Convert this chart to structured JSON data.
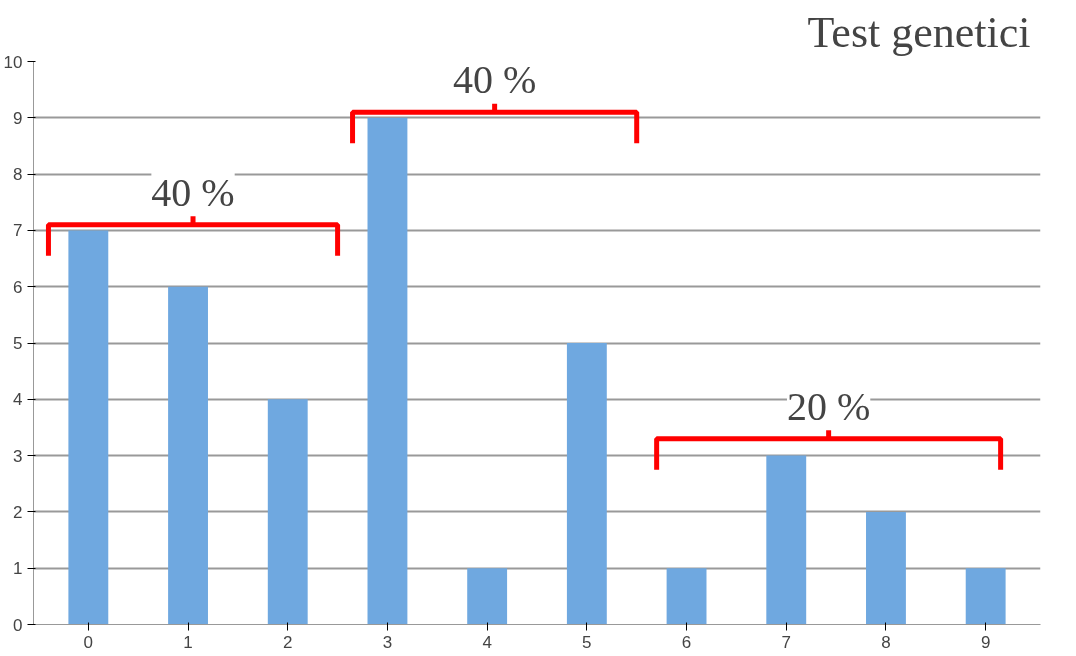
{
  "chart_data": {
    "type": "bar",
    "title": "Test genetici",
    "categories": [
      "0",
      "1",
      "2",
      "3",
      "4",
      "5",
      "6",
      "7",
      "8",
      "9"
    ],
    "values": [
      7,
      6,
      4,
      9,
      1,
      5,
      1,
      3,
      2,
      1
    ],
    "color": "#6fa8e0",
    "ylim": [
      0,
      10
    ],
    "yticks": [
      0,
      1,
      2,
      3,
      4,
      5,
      6,
      7,
      8,
      9,
      10
    ],
    "grid": "y",
    "annotations": [
      "40 %",
      "40 %",
      "20 %"
    ]
  }
}
